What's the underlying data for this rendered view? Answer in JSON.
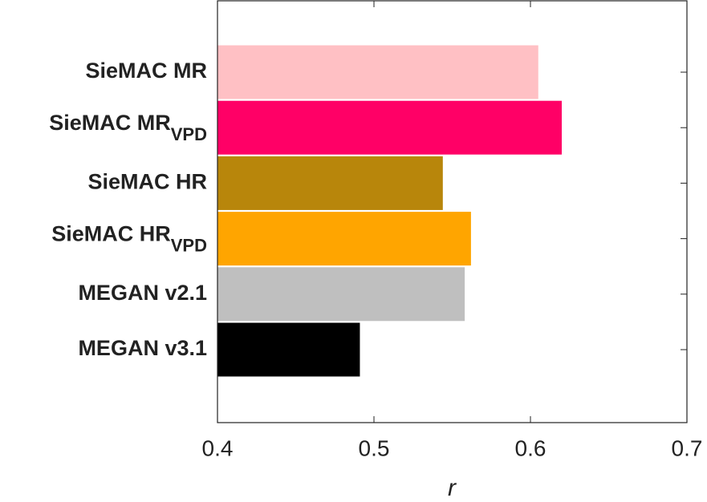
{
  "chart_data": {
    "type": "barh",
    "categories": [
      "SieMAC MR",
      "SieMAC MR",
      "SieMAC HR",
      "SieMAC HR",
      "MEGAN v2.1",
      "MEGAN v3.1"
    ],
    "category_subscripts": [
      null,
      "VPD",
      null,
      "VPD",
      null,
      null
    ],
    "values": [
      0.605,
      0.62,
      0.544,
      0.562,
      0.558,
      0.491
    ],
    "colors": [
      "#ffc0c4",
      "#ff0066",
      "#b8860b",
      "#ffa500",
      "#bfbfbf",
      "#000000"
    ],
    "xlim": [
      0.4,
      0.7
    ],
    "xticks": [
      0.4,
      0.5,
      0.6,
      0.7
    ],
    "x_label": "r"
  }
}
